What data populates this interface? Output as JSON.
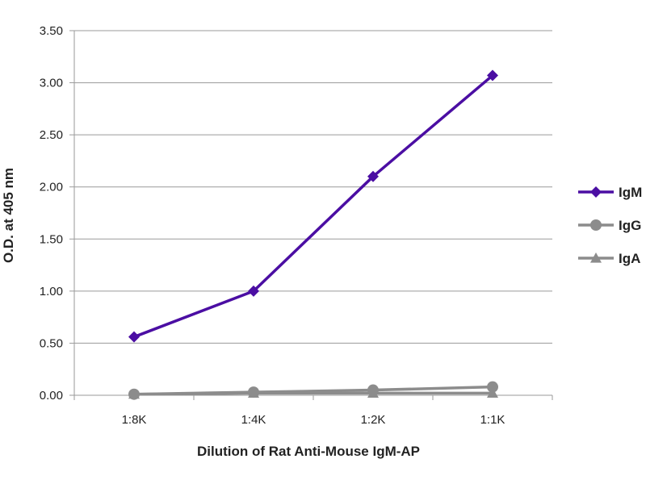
{
  "chart_data": {
    "type": "line",
    "title": "",
    "xlabel": "Dilution of Rat Anti-Mouse IgM-AP",
    "ylabel": "O.D. at 405 nm",
    "categories": [
      "1:8K",
      "1:4K",
      "1:2K",
      "1:1K"
    ],
    "ylim": [
      0,
      3.5
    ],
    "yticks": [
      "0.00",
      "0.50",
      "1.00",
      "1.50",
      "2.00",
      "2.50",
      "3.00",
      "3.50"
    ],
    "grid": true,
    "legend_position": "right",
    "series": [
      {
        "name": "IgM",
        "values": [
          0.56,
          1.0,
          2.1,
          3.07
        ],
        "color": "#4b0ea3",
        "marker": "diamond"
      },
      {
        "name": "IgG",
        "values": [
          0.01,
          0.03,
          0.05,
          0.08
        ],
        "color": "#8c8c8c",
        "marker": "circle"
      },
      {
        "name": "IgA",
        "values": [
          0.01,
          0.02,
          0.02,
          0.02
        ],
        "color": "#8c8c8c",
        "marker": "triangle"
      }
    ]
  }
}
